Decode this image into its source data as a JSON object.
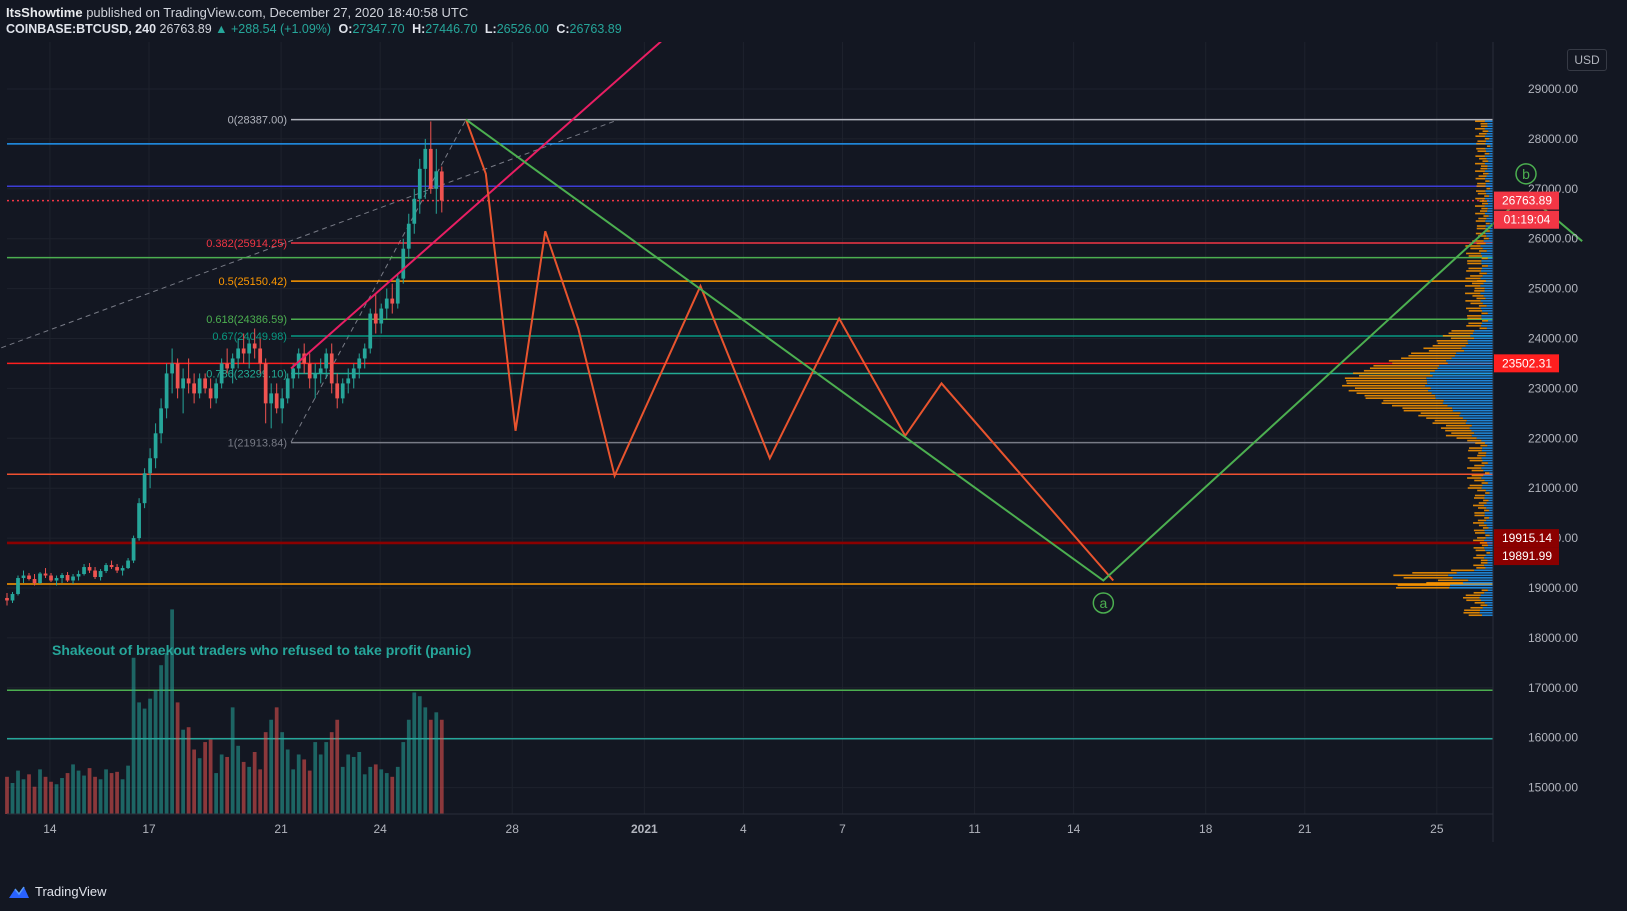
{
  "header": {
    "author": "ItsShowtime",
    "published_text": "published on TradingView.com, December 27, 2020 18:40:58 UTC",
    "symbol": "COINBASE:BTCUSD, 240",
    "last": "26763.89",
    "change": "▲ +288.54 (+1.09%)",
    "o_label": "O:",
    "o": "27347.70",
    "h_label": "H:",
    "h": "27446.70",
    "l_label": "L:",
    "l": "26526.00",
    "c_label": "C:",
    "c": "26763.89"
  },
  "currency_button": "USD",
  "footer": {
    "brand": "TradingView"
  },
  "chart_data": {
    "type": "candlestick",
    "symbol": "COINBASE:BTCUSD",
    "interval": "240",
    "y_ticks": [
      29000,
      28000,
      27000,
      26000,
      25000,
      24000,
      23000,
      22000,
      21000,
      20000,
      19000,
      18000,
      17000,
      16000,
      15000
    ],
    "y_tick_labels": [
      "29000.00",
      "28000.00",
      "27000.00",
      "26000.00",
      "25000.00",
      "24000.00",
      "23000.00",
      "22000.00",
      "21000.00",
      "20000.00",
      "19000.00",
      "18000.00",
      "17000.00",
      "16000.00",
      "15000.00"
    ],
    "ylim": [
      14500,
      29950
    ],
    "x_ticks": [
      {
        "label": "14",
        "day": 14,
        "bold": false
      },
      {
        "label": "17",
        "day": 17,
        "bold": false
      },
      {
        "label": "21",
        "day": 21,
        "bold": false
      },
      {
        "label": "24",
        "day": 24,
        "bold": false
      },
      {
        "label": "28",
        "day": 28,
        "bold": false
      },
      {
        "label": "2021",
        "day": 32,
        "bold": true
      },
      {
        "label": "4",
        "day": 35,
        "bold": false
      },
      {
        "label": "7",
        "day": 38,
        "bold": false
      },
      {
        "label": "11",
        "day": 42,
        "bold": false
      },
      {
        "label": "14",
        "day": 45,
        "bold": false
      },
      {
        "label": "18",
        "day": 49,
        "bold": false
      },
      {
        "label": "21",
        "day": 52,
        "bold": false
      },
      {
        "label": "25",
        "day": 56,
        "bold": false
      }
    ],
    "x_axis_unit": "days (December 2020, continuing into January 2021)",
    "candle_interval_hours": 4,
    "candle_start_day": 12.7,
    "candles": [
      [
        18800,
        18900,
        18650,
        18750
      ],
      [
        18750,
        18920,
        18700,
        18880
      ],
      [
        18880,
        19250,
        18850,
        19200
      ],
      [
        19200,
        19350,
        19100,
        19250
      ],
      [
        19250,
        19300,
        19150,
        19180
      ],
      [
        19180,
        19280,
        19050,
        19100
      ],
      [
        19100,
        19320,
        19080,
        19290
      ],
      [
        19290,
        19400,
        19200,
        19250
      ],
      [
        19250,
        19300,
        19120,
        19150
      ],
      [
        19150,
        19250,
        19050,
        19200
      ],
      [
        19200,
        19300,
        19100,
        19260
      ],
      [
        19260,
        19320,
        19120,
        19150
      ],
      [
        19150,
        19280,
        19080,
        19230
      ],
      [
        19230,
        19350,
        19150,
        19280
      ],
      [
        19280,
        19480,
        19250,
        19420
      ],
      [
        19420,
        19500,
        19300,
        19350
      ],
      [
        19350,
        19420,
        19180,
        19220
      ],
      [
        19220,
        19380,
        19150,
        19340
      ],
      [
        19340,
        19500,
        19300,
        19460
      ],
      [
        19460,
        19550,
        19380,
        19420
      ],
      [
        19420,
        19480,
        19300,
        19350
      ],
      [
        19350,
        19450,
        19250,
        19400
      ],
      [
        19400,
        19600,
        19380,
        19550
      ],
      [
        19550,
        20050,
        19500,
        20000
      ],
      [
        20000,
        20800,
        19950,
        20700
      ],
      [
        20700,
        21400,
        20600,
        21300
      ],
      [
        21300,
        21800,
        21000,
        21600
      ],
      [
        21600,
        22300,
        21400,
        22100
      ],
      [
        22100,
        22800,
        21900,
        22600
      ],
      [
        22600,
        23500,
        22400,
        23300
      ],
      [
        23300,
        23800,
        22900,
        23500
      ],
      [
        23500,
        23600,
        22800,
        23000
      ],
      [
        23000,
        23400,
        22500,
        23200
      ],
      [
        23200,
        23600,
        22900,
        23100
      ],
      [
        23100,
        23300,
        22700,
        22900
      ],
      [
        22900,
        23300,
        22800,
        23200
      ],
      [
        23200,
        23300,
        22900,
        23000
      ],
      [
        23000,
        23200,
        22600,
        22800
      ],
      [
        22800,
        23200,
        22700,
        23100
      ],
      [
        23100,
        23600,
        23000,
        23500
      ],
      [
        23500,
        23800,
        23300,
        23400
      ],
      [
        23400,
        23700,
        23100,
        23600
      ],
      [
        23600,
        24000,
        23400,
        23800
      ],
      [
        23800,
        24100,
        23500,
        23700
      ],
      [
        23700,
        24000,
        23400,
        23900
      ],
      [
        23900,
        24200,
        23600,
        23800
      ],
      [
        23800,
        24000,
        23300,
        23500
      ],
      [
        23500,
        23600,
        22300,
        22700
      ],
      [
        22700,
        23100,
        22200,
        22900
      ],
      [
        22900,
        23100,
        22500,
        22600
      ],
      [
        22600,
        23000,
        22300,
        22800
      ],
      [
        22800,
        23300,
        22700,
        23200
      ],
      [
        23200,
        23500,
        23000,
        23400
      ],
      [
        23400,
        23800,
        23200,
        23700
      ],
      [
        23700,
        23900,
        23300,
        23500
      ],
      [
        23500,
        23700,
        23000,
        23200
      ],
      [
        23200,
        23500,
        22800,
        23300
      ],
      [
        23300,
        23600,
        23100,
        23400
      ],
      [
        23400,
        23800,
        23200,
        23700
      ],
      [
        23700,
        23900,
        22900,
        23100
      ],
      [
        23100,
        23300,
        22600,
        22800
      ],
      [
        22800,
        23200,
        22700,
        23100
      ],
      [
        23100,
        23400,
        22900,
        23200
      ],
      [
        23200,
        23500,
        23000,
        23400
      ],
      [
        23400,
        23700,
        23200,
        23600
      ],
      [
        23600,
        23900,
        23400,
        23800
      ],
      [
        23800,
        24600,
        23700,
        24500
      ],
      [
        24500,
        24900,
        24100,
        24300
      ],
      [
        24300,
        24700,
        24100,
        24600
      ],
      [
        24600,
        25000,
        24400,
        24800
      ],
      [
        24800,
        25100,
        24500,
        24700
      ],
      [
        24700,
        25300,
        24600,
        25200
      ],
      [
        25200,
        26000,
        25100,
        25800
      ],
      [
        25800,
        26500,
        25600,
        26300
      ],
      [
        26300,
        27000,
        26100,
        26800
      ],
      [
        26800,
        27600,
        26500,
        27400
      ],
      [
        27400,
        28000,
        26800,
        27800
      ],
      [
        27800,
        28350,
        26900,
        27000
      ],
      [
        27000,
        27800,
        26500,
        27350
      ],
      [
        27347.7,
        27446.7,
        26526,
        26763.89
      ]
    ],
    "volume": [
      3,
      2.5,
      3.5,
      2.8,
      3.2,
      2.2,
      3.6,
      3,
      2.6,
      2.4,
      2.9,
      3.3,
      4,
      3.5,
      3.1,
      3.7,
      3,
      2.8,
      3.6,
      3.3,
      3.4,
      2.8,
      3.9,
      12.6,
      9,
      8.5,
      9.3,
      10,
      12,
      13,
      16.5,
      9,
      6.8,
      7,
      5.2,
      4.5,
      5.8,
      6,
      3.3,
      4.8,
      4.6,
      8.6,
      5.5,
      4.2,
      3.8,
      5,
      3.6,
      6.6,
      7.6,
      8.6,
      6.6,
      5.2,
      3.6,
      4.8,
      4.4,
      3.5,
      5.8,
      4.8,
      5.8,
      6.6,
      7.6,
      3.8,
      4.8,
      4.6,
      5,
      3.2,
      3.8,
      4,
      3.6,
      3.3,
      3,
      3.8,
      5.8,
      7.6,
      9.8,
      9.5,
      8.6,
      7.6,
      8.2,
      7.6
    ],
    "volume_directions": "per candle: close >= open is up (teal), otherwise down (red)",
    "fibonacci": [
      {
        "level": "0",
        "price": 28387.0,
        "label": "0(28387.00)",
        "color": "#b2b5be"
      },
      {
        "level": "0.382",
        "price": 25914.25,
        "label": "0.382(25914.25)",
        "color": "#f23645"
      },
      {
        "level": "0.5",
        "price": 25150.42,
        "label": "0.5(25150.42)",
        "color": "#ff9800"
      },
      {
        "level": "0.618",
        "price": 24386.59,
        "label": "0.618(24386.59)",
        "color": "#4caf50"
      },
      {
        "level": "0.67",
        "price": 24049.98,
        "label": "0.67(24049.98)",
        "color": "#089981"
      },
      {
        "level": "0.786",
        "price": 23299.1,
        "label": "0.786(23299.10)",
        "color": "#22ab94"
      },
      {
        "level": "1",
        "price": 21913.84,
        "label": "1(21913.84)",
        "color": "#787b86"
      }
    ],
    "horizontal_lines": [
      {
        "price": 27900,
        "color": "#2196f3"
      },
      {
        "price": 27050,
        "color": "#3d3dd6"
      },
      {
        "price": 26763.89,
        "color": "#f23645",
        "style": "dotted"
      },
      {
        "price": 25620,
        "color": "#4caf50"
      },
      {
        "price": 23502.31,
        "color": "#ff1f1f"
      },
      {
        "price": 21280,
        "color": "#f05030"
      },
      {
        "price": 19915.14,
        "color": "#8b0000"
      },
      {
        "price": 19891.99,
        "color": "#8b0000"
      },
      {
        "price": 19080,
        "color": "#ff9800"
      },
      {
        "price": 16950,
        "color": "#4caf50"
      },
      {
        "price": 15980,
        "color": "#26a69a"
      }
    ],
    "price_labels": [
      {
        "text": "26763.89",
        "price": 26763.89,
        "bg": "#f23645"
      },
      {
        "text": "01:19:04",
        "price": 26380,
        "bg": "#f23645"
      },
      {
        "text": "23502.31",
        "price": 23502.31,
        "bg": "#ff1f1f"
      },
      {
        "text": "19915.14",
        "price": 20000,
        "bg": "#8b0000"
      },
      {
        "text": "19891.99",
        "price": 19640,
        "bg": "#8b0000"
      }
    ],
    "projection_zigzag": {
      "color": "#e8542e",
      "points": [
        [
          26.6,
          28387
        ],
        [
          27.2,
          27300
        ],
        [
          28.1,
          22150
        ],
        [
          29.0,
          26150
        ],
        [
          30.0,
          24200
        ],
        [
          31.1,
          21250
        ],
        [
          33.7,
          25050
        ],
        [
          35.8,
          21600
        ],
        [
          37.9,
          24400
        ],
        [
          39.9,
          22050
        ],
        [
          41.0,
          23100
        ],
        [
          46.2,
          19150
        ]
      ]
    },
    "abc_path": {
      "color": "#4caf50",
      "points": [
        [
          26.6,
          28387
        ],
        [
          45.9,
          19150
        ],
        [
          58.7,
          26900
        ],
        [
          60.4,
          25950
        ]
      ],
      "labels": [
        {
          "text": "a",
          "day": 45.9,
          "price": 18700
        },
        {
          "text": "b",
          "day": 58.7,
          "price": 27300
        }
      ]
    },
    "trendline": {
      "color": "#e91e63",
      "points": [
        [
          21.3,
          23400
        ],
        [
          33.1,
          30300
        ]
      ]
    },
    "dashed_channel": [
      {
        "points": [
          [
            0,
            20750
          ],
          [
            31.2,
            28380
          ]
        ],
        "color": "#787b86"
      },
      {
        "points": [
          [
            21.3,
            21920
          ],
          [
            26.6,
            28387
          ]
        ],
        "color": "#787b86"
      }
    ],
    "annotation": {
      "text": "Shakeout of braekout traders who refused to take profit (panic)",
      "color": "#26a69a"
    }
  }
}
